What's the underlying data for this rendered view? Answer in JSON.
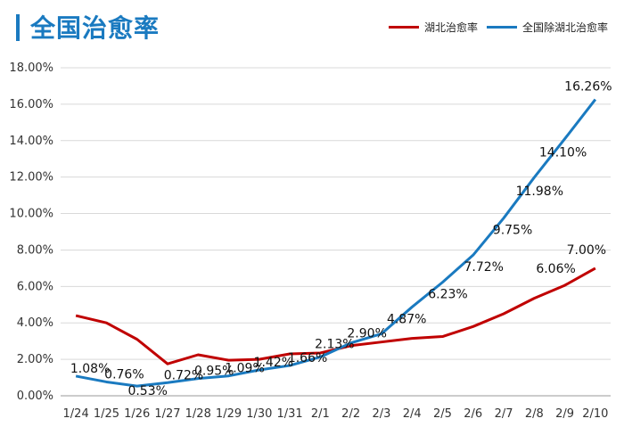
{
  "title": "全国治愈率",
  "legend": [
    {
      "name": "湖北治愈率",
      "color": "#c00000"
    },
    {
      "name": "全国除湖北治愈率",
      "color": "#1a7ac0"
    }
  ],
  "chart_data": {
    "type": "line",
    "title": "全国治愈率",
    "x": [
      "1/24",
      "1/25",
      "1/26",
      "1/27",
      "1/28",
      "1/29",
      "1/30",
      "1/31",
      "2/1",
      "2/2",
      "2/3",
      "2/4",
      "2/5",
      "2/6",
      "2/7",
      "2/8",
      "2/9",
      "2/10"
    ],
    "yticks": [
      "0.00%",
      "2.00%",
      "4.00%",
      "6.00%",
      "8.00%",
      "10.00%",
      "12.00%",
      "14.00%",
      "16.00%",
      "18.00%"
    ],
    "ylim": [
      0,
      18
    ],
    "grid": true,
    "legend_position": "top-right",
    "series": [
      {
        "name": "湖北治愈率",
        "color": "#c00000",
        "values": [
          4.4,
          4.0,
          3.1,
          1.75,
          2.25,
          1.95,
          2.0,
          2.3,
          2.35,
          2.75,
          2.95,
          3.15,
          3.25,
          3.8,
          4.5,
          5.35,
          6.06,
          7.0
        ],
        "labels": [
          "",
          "",
          "",
          "",
          "",
          "",
          "",
          "",
          "",
          "",
          "",
          "",
          "",
          "",
          "",
          "",
          "6.06%",
          "7.00%"
        ]
      },
      {
        "name": "全国除湖北治愈率",
        "color": "#1a7ac0",
        "values": [
          1.08,
          0.76,
          0.53,
          0.72,
          0.95,
          1.09,
          1.42,
          1.66,
          2.13,
          2.9,
          3.4,
          4.87,
          6.23,
          7.72,
          9.75,
          11.98,
          14.1,
          16.26
        ],
        "labels": [
          "1.08%",
          "0.76%",
          "0.53%",
          "0.72%",
          "0.95%",
          "1.09%",
          "1.42%",
          "1.66%",
          "2.13%",
          "2.90%",
          "",
          "4.87%",
          "6.23%",
          "7.72%",
          "9.75%",
          "11.98%",
          "14.10%",
          "16.26%"
        ]
      }
    ]
  }
}
